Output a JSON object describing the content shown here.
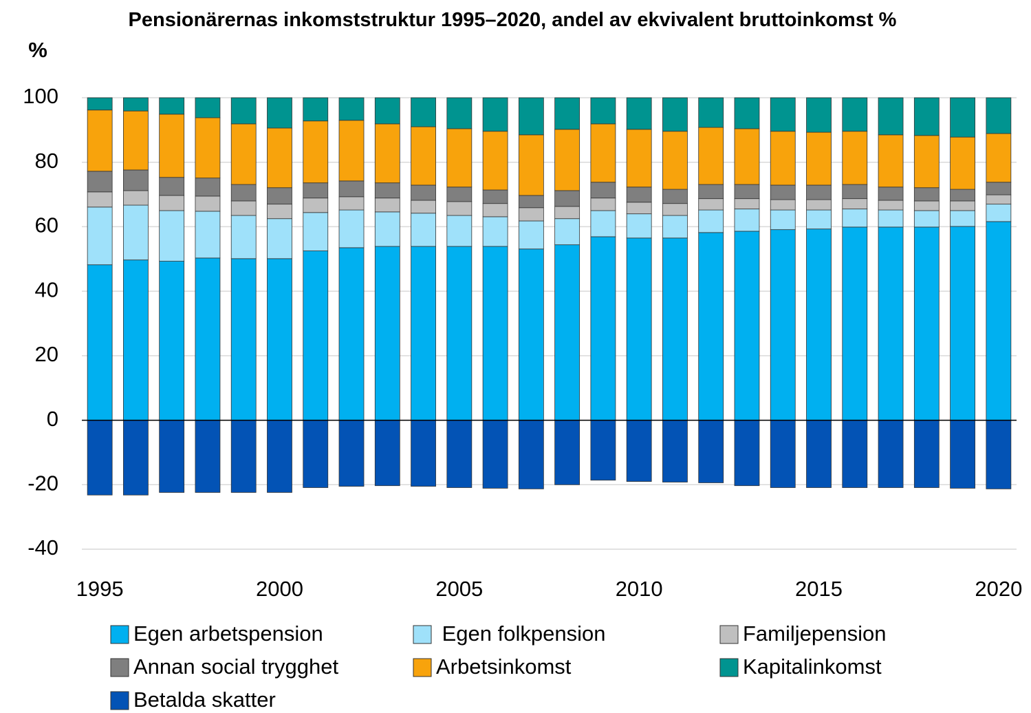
{
  "chart_data": {
    "type": "stacked_bar",
    "title": "Pensionärernas inkomststruktur 1995–2020, andel av ekvivalent bruttoinkomst %",
    "y_label": "%",
    "categories": [
      "1995",
      null,
      null,
      null,
      null,
      "2000",
      null,
      null,
      null,
      null,
      "2005",
      null,
      null,
      null,
      null,
      "2010",
      null,
      null,
      null,
      null,
      "2015",
      null,
      null,
      null,
      null,
      "2020"
    ],
    "ylim": [
      -40,
      100
    ],
    "yticks": [
      -40,
      -20,
      0,
      20,
      40,
      60,
      80,
      100
    ],
    "grid": true,
    "legend": "bottom",
    "series": [
      {
        "name": "Egen arbetspension",
        "color": "#00b0f0",
        "values": [
          48.2,
          49.7,
          49.3,
          50.3,
          50.1,
          50.1,
          52.5,
          53.5,
          53.9,
          53.9,
          53.9,
          53.9,
          53.1,
          54.4,
          56.9,
          56.5,
          56.5,
          58.2,
          58.6,
          59.1,
          59.3,
          59.9,
          59.9,
          59.9,
          60.1,
          61.6
        ]
      },
      {
        "name": " Egen folkpension",
        "color": "#9fe1fa",
        "values": [
          17.9,
          17.0,
          15.7,
          14.5,
          13.4,
          12.4,
          11.9,
          11.7,
          10.7,
          10.3,
          9.6,
          9.2,
          8.7,
          8.1,
          8.1,
          7.5,
          7.0,
          7.0,
          6.9,
          6.1,
          5.9,
          5.6,
          5.3,
          5.1,
          4.9,
          5.4
        ]
      },
      {
        "name": "Familjepension",
        "color": "#bfbfbf",
        "values": [
          4.7,
          4.5,
          4.7,
          4.7,
          4.5,
          4.5,
          4.5,
          4.1,
          4.3,
          4.0,
          4.3,
          4.1,
          4.1,
          3.8,
          3.9,
          3.6,
          3.7,
          3.5,
          3.2,
          3.2,
          3.2,
          3.2,
          3.0,
          3.0,
          3.0,
          2.9
        ]
      },
      {
        "name": "Annan social trygghet",
        "color": "#7f7f7f",
        "values": [
          6.4,
          6.4,
          5.6,
          5.6,
          5.1,
          5.1,
          4.7,
          4.9,
          4.7,
          4.7,
          4.5,
          4.2,
          3.8,
          4.9,
          4.9,
          4.7,
          4.4,
          4.4,
          4.4,
          4.5,
          4.5,
          4.4,
          4.1,
          4.1,
          3.6,
          3.9
        ]
      },
      {
        "name": "Arbetsinkomst",
        "color": "#f8a30c",
        "values": [
          19.0,
          18.3,
          19.6,
          18.7,
          18.8,
          18.5,
          19.2,
          18.8,
          18.3,
          18.1,
          18.1,
          18.2,
          18.8,
          19.0,
          18.1,
          17.9,
          18.0,
          17.7,
          17.3,
          16.7,
          16.4,
          16.5,
          16.2,
          16.2,
          16.2,
          15.1
        ]
      },
      {
        "name": "Kapitalinkomst",
        "color": "#009490",
        "values": [
          3.8,
          4.1,
          5.1,
          6.2,
          8.1,
          9.4,
          7.2,
          7.0,
          8.1,
          9.0,
          9.6,
          10.4,
          11.5,
          9.8,
          8.1,
          9.8,
          10.4,
          9.2,
          9.6,
          10.4,
          10.7,
          10.4,
          11.5,
          11.7,
          12.2,
          11.1
        ]
      },
      {
        "name": "Betalda skatter",
        "color": "#0353b5",
        "values": [
          -23.2,
          -23.2,
          -22.4,
          -22.4,
          -22.4,
          -22.4,
          -20.9,
          -20.5,
          -20.3,
          -20.5,
          -20.9,
          -21.1,
          -21.3,
          -20.0,
          -18.6,
          -19.0,
          -19.2,
          -19.4,
          -20.3,
          -20.9,
          -20.9,
          -20.9,
          -20.9,
          -20.9,
          -21.1,
          -21.3
        ]
      }
    ]
  }
}
